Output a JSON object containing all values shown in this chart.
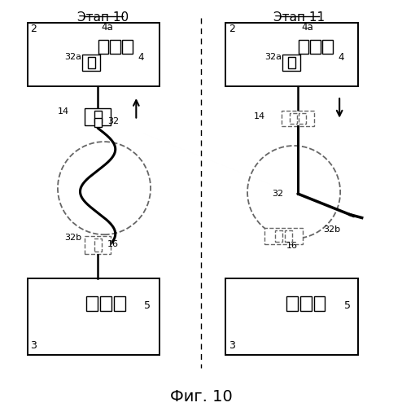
{
  "title_left": "Этап 10",
  "title_right": "Этап 11",
  "fig_caption": "Фиг. 10",
  "bg_color": "#ffffff",
  "line_color": "#000000",
  "dashed_color": "#666666"
}
